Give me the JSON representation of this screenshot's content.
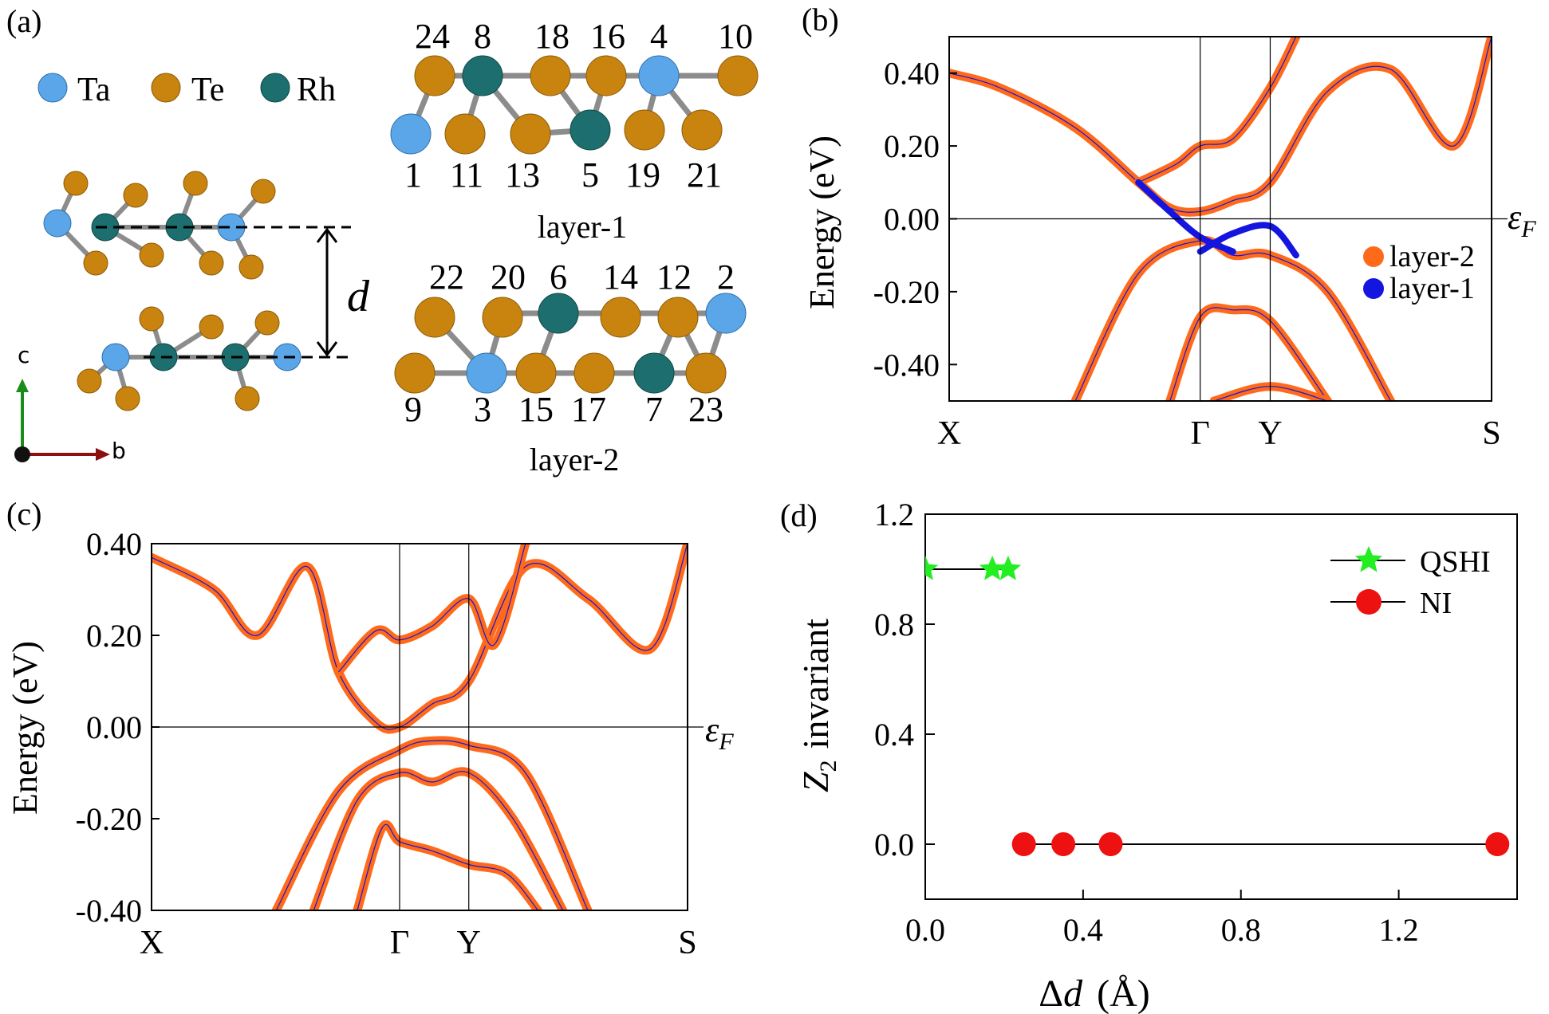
{
  "panel_labels": {
    "a": "(a)",
    "b": "(b)",
    "c": "(c)",
    "d": "(d)"
  },
  "colors": {
    "ta": "#5aa6e8",
    "te": "#c8840e",
    "rh": "#1d6e6e",
    "bond": "#8c8c8c",
    "layer2": "#ff6a1a",
    "layer1": "#1515e0",
    "qshi": "#22ee22",
    "ni": "#ee1111",
    "axis_c": "#1a8c1a",
    "axis_b": "#8c1010"
  },
  "structure": {
    "legend": [
      {
        "element": "Ta",
        "color": "#5aa6e8"
      },
      {
        "element": "Te",
        "color": "#c8840e"
      },
      {
        "element": "Rh",
        "color": "#1d6e6e"
      }
    ],
    "d_label": "d",
    "axis_c": "c",
    "axis_b": "b",
    "layer1_caption": "layer-1",
    "layer2_caption": "layer-2",
    "layer1_top_numbers": [
      "24",
      "8",
      "18",
      "16",
      "4",
      "10"
    ],
    "layer1_bottom_numbers": [
      "1",
      "11",
      "13",
      "5",
      "19",
      "21"
    ],
    "layer2_top_numbers": [
      "22",
      "20",
      "6",
      "14",
      "12",
      "2"
    ],
    "layer2_bottom_numbers": [
      "9",
      "3",
      "15",
      "17",
      "7",
      "23"
    ]
  },
  "chart_data": [
    {
      "panel": "(b)",
      "type": "line",
      "ylabel": "Energy (eV)",
      "ylim": [
        -0.5,
        0.5
      ],
      "yticks": [
        "0.40",
        "0.20",
        "0.00",
        "-0.20",
        "-0.40"
      ],
      "xtick_labels": [
        "X",
        "Γ",
        "Y",
        "S"
      ],
      "x_kpath": [
        0,
        0.398,
        0.509,
        0.86
      ],
      "fermi_label": "εF",
      "legend": [
        "layer-2",
        "layer-1"
      ],
      "legend_placement": "right",
      "series": [
        {
          "name": "layer-2",
          "color": "#ff6a1a",
          "bands": [
            {
              "x": [
                0,
                0.08,
                0.2,
                0.3,
                0.35,
                0.398,
                0.45,
                0.509,
                0.6,
                0.7,
                0.8,
                0.86
              ],
              "y": [
                0.4,
                0.36,
                0.25,
                0.1,
                0.03,
                0.02,
                0.05,
                0.1,
                0.35,
                0.41,
                0.2,
                0.5
              ]
            },
            {
              "x": [
                0.3,
                0.36,
                0.398,
                0.45,
                0.509,
                0.55
              ],
              "y": [
                0.1,
                0.15,
                0.2,
                0.22,
                0.36,
                0.5
              ]
            },
            {
              "x": [
                0.2,
                0.3,
                0.398,
                0.45,
                0.509,
                0.6,
                0.7
              ],
              "y": [
                -0.5,
                -0.15,
                -0.06,
                -0.1,
                -0.1,
                -0.2,
                -0.5
              ]
            },
            {
              "x": [
                0.35,
                0.398,
                0.45,
                0.509,
                0.6
              ],
              "y": [
                -0.5,
                -0.27,
                -0.25,
                -0.28,
                -0.5
              ]
            },
            {
              "x": [
                0.42,
                0.509,
                0.6
              ],
              "y": [
                -0.5,
                -0.46,
                -0.5
              ]
            }
          ]
        },
        {
          "name": "layer-1",
          "color": "#1515e0",
          "bands": [
            {
              "x": [
                0.3,
                0.35,
                0.398,
                0.45
              ],
              "y": [
                0.1,
                0.02,
                -0.05,
                -0.09
              ]
            },
            {
              "x": [
                0.398,
                0.45,
                0.509,
                0.55
              ],
              "y": [
                -0.09,
                -0.04,
                -0.02,
                -0.1
              ]
            }
          ]
        }
      ]
    },
    {
      "panel": "(c)",
      "type": "line",
      "ylabel": "Energy (eV)",
      "ylim": [
        -0.4,
        0.4
      ],
      "yticks": [
        "0.40",
        "0.20",
        "0.00",
        "-0.20",
        "-0.40"
      ],
      "xtick_labels": [
        "X",
        "Γ",
        "Y",
        "S"
      ],
      "x_kpath": [
        0,
        0.398,
        0.509,
        0.86
      ],
      "fermi_label": "εF",
      "series": [
        {
          "name": "layer-2",
          "color": "#ff6a1a",
          "bands": [
            {
              "x": [
                0,
                0.1,
                0.17,
                0.25,
                0.3,
                0.36,
                0.398,
                0.45,
                0.509,
                0.6,
                0.7,
                0.8,
                0.86
              ],
              "y": [
                0.37,
                0.3,
                0.2,
                0.35,
                0.12,
                0.01,
                0.0,
                0.05,
                0.1,
                0.35,
                0.28,
                0.17,
                0.4
              ]
            },
            {
              "x": [
                0.3,
                0.36,
                0.398,
                0.45,
                0.509,
                0.55,
                0.6
              ],
              "y": [
                0.12,
                0.21,
                0.19,
                0.22,
                0.28,
                0.18,
                0.4
              ]
            },
            {
              "x": [
                0.2,
                0.3,
                0.398,
                0.45,
                0.509,
                0.6,
                0.7
              ],
              "y": [
                -0.4,
                -0.14,
                -0.05,
                -0.03,
                -0.04,
                -0.1,
                -0.4
              ]
            },
            {
              "x": [
                0.26,
                0.33,
                0.398,
                0.45,
                0.509,
                0.58,
                0.66
              ],
              "y": [
                -0.4,
                -0.16,
                -0.1,
                -0.12,
                -0.1,
                -0.2,
                -0.4
              ]
            },
            {
              "x": [
                0.33,
                0.37,
                0.398,
                0.45,
                0.509,
                0.57,
                0.62
              ],
              "y": [
                -0.4,
                -0.22,
                -0.25,
                -0.27,
                -0.3,
                -0.32,
                -0.4
              ]
            }
          ]
        }
      ]
    },
    {
      "panel": "(d)",
      "type": "scatter",
      "xlabel": "Δd (Å)",
      "ylabel": "Z2 invariant",
      "xlim": [
        0,
        1.5
      ],
      "ylim": [
        -0.2,
        1.2
      ],
      "xticks": [
        "0.0",
        "0.4",
        "0.8",
        "1.2"
      ],
      "yticks": [
        "1.2",
        "0.8",
        "0.4",
        "0.0"
      ],
      "legend": [
        "QSHI",
        "NI"
      ],
      "legend_placement": "top-right",
      "series": [
        {
          "name": "QSHI",
          "marker": "star",
          "color": "#22ee22",
          "x": [
            0.0,
            0.17,
            0.21
          ],
          "y": [
            1,
            1,
            1
          ]
        },
        {
          "name": "NI",
          "marker": "circle",
          "color": "#ee1111",
          "x": [
            0.25,
            0.35,
            0.47,
            1.45
          ],
          "y": [
            0,
            0,
            0,
            0
          ]
        }
      ]
    }
  ]
}
